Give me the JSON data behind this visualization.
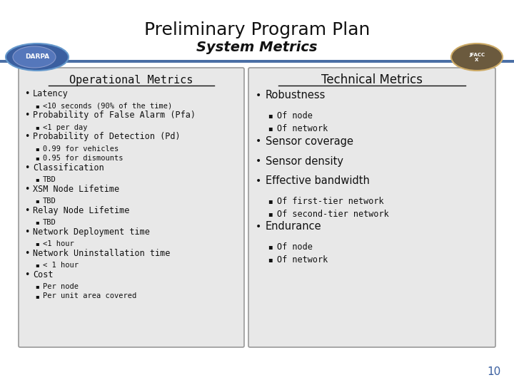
{
  "title": "Preliminary Program Plan",
  "subtitle": "System Metrics",
  "bg_color": "#ffffff",
  "panel_bg": "#e8e8e8",
  "panel_border": "#999999",
  "header_bar_color": "#4a6fa5",
  "page_number": "10",
  "left_panel_title": "Operational Metrics",
  "right_panel_title": "Technical Metrics",
  "left_items": [
    {
      "level": 1,
      "text": "Latency"
    },
    {
      "level": 2,
      "text": "<10 seconds (90% of the time)"
    },
    {
      "level": 1,
      "text": "Probability of False Alarm (Pfa)"
    },
    {
      "level": 2,
      "text": "<1 per day"
    },
    {
      "level": 1,
      "text": "Probability of Detection (Pd)"
    },
    {
      "level": 2,
      "text": "0.99 for vehicles"
    },
    {
      "level": 2,
      "text": "0.95 for dismounts"
    },
    {
      "level": 1,
      "text": "Classification"
    },
    {
      "level": 2,
      "text": "TBD"
    },
    {
      "level": 1,
      "text": "XSM Node Lifetime"
    },
    {
      "level": 2,
      "text": "TBD"
    },
    {
      "level": 1,
      "text": "Relay Node Lifetime"
    },
    {
      "level": 2,
      "text": "TBD"
    },
    {
      "level": 1,
      "text": "Network Deployment time"
    },
    {
      "level": 2,
      "text": "<1 hour"
    },
    {
      "level": 1,
      "text": "Network Uninstallation time"
    },
    {
      "level": 2,
      "text": "< 1 hour"
    },
    {
      "level": 1,
      "text": "Cost"
    },
    {
      "level": 2,
      "text": "Per node"
    },
    {
      "level": 2,
      "text": "Per unit area covered"
    }
  ],
  "right_items": [
    {
      "level": 1,
      "text": "Robustness"
    },
    {
      "level": 2,
      "text": "Of node"
    },
    {
      "level": 2,
      "text": "Of network"
    },
    {
      "level": 1,
      "text": "Sensor coverage"
    },
    {
      "level": 1,
      "text": "Sensor density"
    },
    {
      "level": 1,
      "text": "Effective bandwidth"
    },
    {
      "level": 2,
      "text": "Of first-tier network"
    },
    {
      "level": 2,
      "text": "Of second-tier network"
    },
    {
      "level": 1,
      "text": "Endurance"
    },
    {
      "level": 2,
      "text": "Of node"
    },
    {
      "level": 2,
      "text": "Of network"
    }
  ]
}
